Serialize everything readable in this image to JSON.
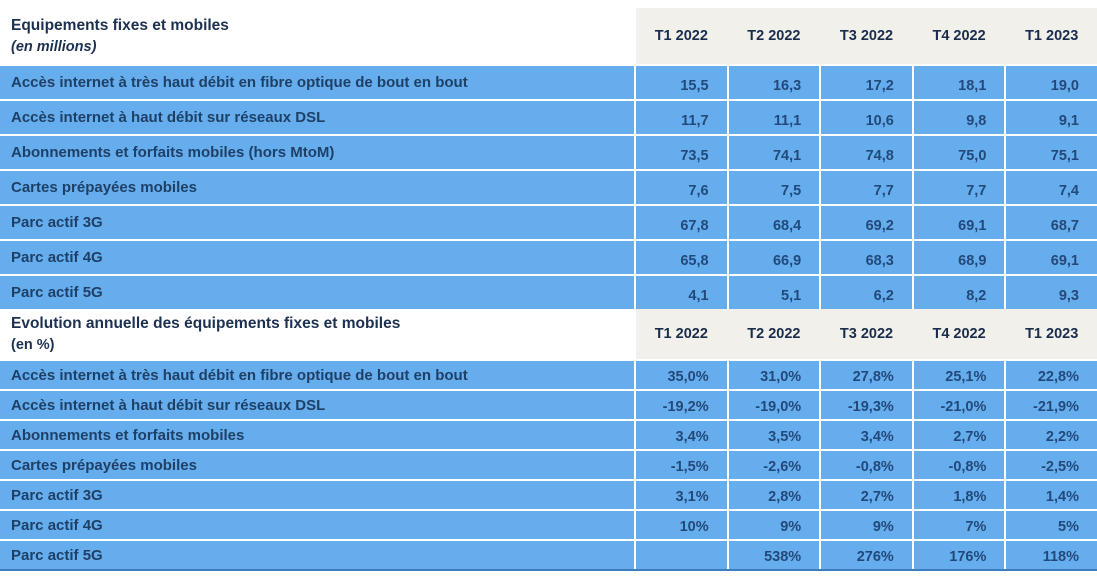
{
  "columns": [
    "T1 2022",
    "T2 2022",
    "T3 2022",
    "T4 2022",
    "T1 2023"
  ],
  "section1": {
    "title": "Equipements fixes et mobiles",
    "subtitle": "(en millions)",
    "rows": [
      {
        "label": "Accès internet à très haut débit en fibre optique de bout en bout",
        "values": [
          "15,5",
          "16,3",
          "17,2",
          "18,1",
          "19,0"
        ]
      },
      {
        "label": "Accès internet à haut débit sur réseaux DSL",
        "values": [
          "11,7",
          "11,1",
          "10,6",
          "9,8",
          "9,1"
        ]
      },
      {
        "label": "Abonnements et forfaits mobiles (hors MtoM)",
        "values": [
          "73,5",
          "74,1",
          "74,8",
          "75,0",
          "75,1"
        ]
      },
      {
        "label": "Cartes prépayées mobiles",
        "values": [
          "7,6",
          "7,5",
          "7,7",
          "7,7",
          "7,4"
        ]
      },
      {
        "label": "Parc actif 3G",
        "values": [
          "67,8",
          "68,4",
          "69,2",
          "69,1",
          "68,7"
        ]
      },
      {
        "label": "Parc actif 4G",
        "values": [
          "65,8",
          "66,9",
          "68,3",
          "68,9",
          "69,1"
        ]
      },
      {
        "label": "Parc actif 5G",
        "values": [
          "4,1",
          "5,1",
          "6,2",
          "8,2",
          "9,3"
        ]
      }
    ]
  },
  "section2": {
    "title": "Evolution annuelle des équipements fixes et mobiles",
    "subtitle": "(en %)",
    "rows": [
      {
        "label": "Accès internet à très haut débit en fibre optique de bout en bout",
        "values": [
          "35,0%",
          "31,0%",
          "27,8%",
          "25,1%",
          "22,8%"
        ]
      },
      {
        "label": "Accès internet à haut débit sur réseaux DSL",
        "values": [
          "-19,2%",
          "-19,0%",
          "-19,3%",
          "-21,0%",
          "-21,9%"
        ]
      },
      {
        "label": "Abonnements et forfaits mobiles",
        "values": [
          "3,4%",
          "3,5%",
          "3,4%",
          "2,7%",
          "2,2%"
        ]
      },
      {
        "label": "Cartes prépayées mobiles",
        "values": [
          "-1,5%",
          "-2,6%",
          "-0,8%",
          "-0,8%",
          "-2,5%"
        ]
      },
      {
        "label": "Parc actif 3G",
        "values": [
          "3,1%",
          "2,8%",
          "2,7%",
          "1,8%",
          "1,4%"
        ]
      },
      {
        "label": "Parc actif 4G",
        "values": [
          "10%",
          "9%",
          "9%",
          "7%",
          "5%"
        ]
      },
      {
        "label": "Parc actif 5G",
        "values": [
          "",
          "538%",
          "276%",
          "176%",
          "118%"
        ]
      }
    ]
  },
  "colors": {
    "cell_blue": "#66adee",
    "text_navy": "#1e4066",
    "header_background": "#f2f0eb",
    "table_bottom_border": "#3d7dbf"
  }
}
